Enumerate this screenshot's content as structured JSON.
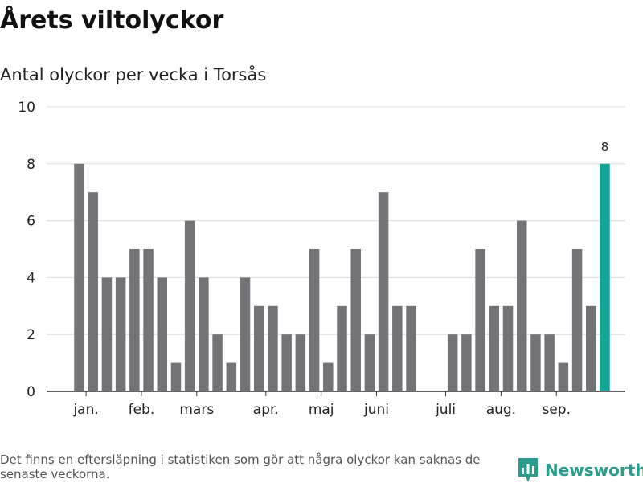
{
  "header": {
    "title": "Årets viltolyckor",
    "subtitle": "Antal olyckor per vecka i Torsås"
  },
  "footer": {
    "note": "Det finns en eftersläpning i statistiken som gör att några olyckor kan saknas de senaste veckorna.",
    "brand": "Newsworthy"
  },
  "colors": {
    "bar": "#737276",
    "highlight": "#11a698",
    "brand": "#2a9d8f"
  },
  "chart_data": {
    "type": "bar",
    "title": "Årets viltolyckor",
    "subtitle": "Antal olyckor per vecka i Torsås",
    "xlabel": "",
    "ylabel": "",
    "ylim": [
      0,
      10
    ],
    "yticks": [
      0,
      2,
      4,
      6,
      8,
      10
    ],
    "grid": true,
    "legend": "none",
    "weeks": [
      1,
      2,
      3,
      4,
      5,
      6,
      7,
      8,
      9,
      10,
      11,
      12,
      13,
      14,
      15,
      16,
      17,
      18,
      19,
      20,
      21,
      22,
      23,
      24,
      25,
      26,
      27,
      28,
      29,
      30,
      31,
      32,
      33,
      34,
      35,
      36,
      37,
      38,
      39
    ],
    "values": [
      8,
      7,
      4,
      4,
      5,
      5,
      4,
      1,
      6,
      4,
      2,
      1,
      4,
      3,
      3,
      2,
      2,
      5,
      1,
      3,
      5,
      2,
      7,
      3,
      3,
      0,
      0,
      2,
      2,
      5,
      3,
      3,
      6,
      2,
      2,
      1,
      5,
      3,
      8
    ],
    "highlight_index": 38,
    "highlight_label": "8",
    "month_labels": [
      {
        "label": "jan.",
        "week": 1.5
      },
      {
        "label": "feb.",
        "week": 5.5
      },
      {
        "label": "mars",
        "week": 9.5
      },
      {
        "label": "apr.",
        "week": 14.5
      },
      {
        "label": "maj",
        "week": 18.5
      },
      {
        "label": "juni",
        "week": 22.5
      },
      {
        "label": "juli",
        "week": 27.5
      },
      {
        "label": "aug.",
        "week": 31.5
      },
      {
        "label": "sep.",
        "week": 35.5
      }
    ]
  }
}
